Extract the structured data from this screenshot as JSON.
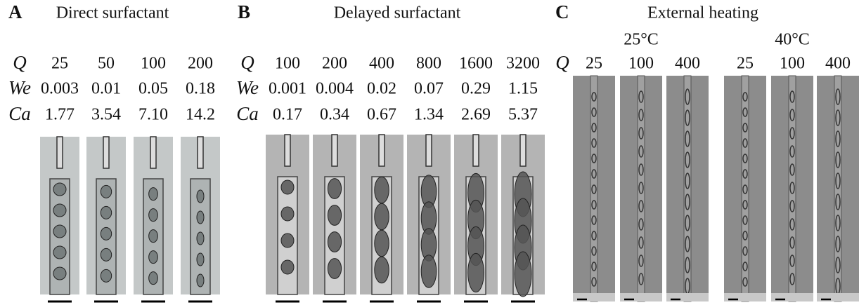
{
  "panels": [
    {
      "label": "A",
      "title": "Direct surfactant",
      "rows": [
        {
          "symbol": "Q",
          "values": [
            "25",
            "50",
            "100",
            "200"
          ]
        },
        {
          "symbol": "We",
          "values": [
            "0.003",
            "0.01",
            "0.05",
            "0.18"
          ]
        },
        {
          "symbol": "Ca",
          "values": [
            "1.77",
            "3.54",
            "7.10",
            "14.2"
          ]
        }
      ]
    },
    {
      "label": "B",
      "title": "Delayed surfactant",
      "rows": [
        {
          "symbol": "Q",
          "values": [
            "100",
            "200",
            "400",
            "800",
            "1600",
            "3200"
          ]
        },
        {
          "symbol": "We",
          "values": [
            "0.001",
            "0.004",
            "0.02",
            "0.07",
            "0.29",
            "1.15"
          ]
        },
        {
          "symbol": "Ca",
          "values": [
            "0.17",
            "0.34",
            "0.67",
            "1.34",
            "2.69",
            "5.37"
          ]
        }
      ]
    },
    {
      "label": "C",
      "title": "External heating",
      "groups": [
        "25°C",
        "40°C"
      ],
      "rows": [
        {
          "symbol": "Q",
          "values": [
            "25",
            "100",
            "400",
            "25",
            "100",
            "400"
          ]
        }
      ]
    }
  ]
}
